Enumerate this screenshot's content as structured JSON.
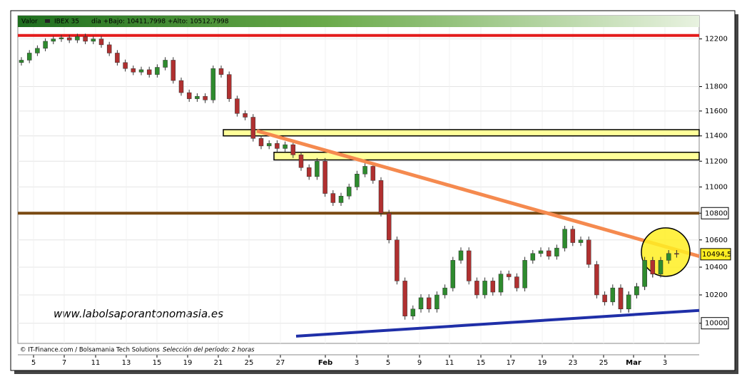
{
  "chart_data": {
    "type": "candlestick",
    "header": "Valor",
    "symbol": "IBEX 35",
    "header_info": "día +Bajo: 10411,7998 +Alto: 10512,7998",
    "footer": "© IT-Finance.com / Bolsamania Tech Solutions",
    "period": "Selección del período: 2 horas",
    "watermark": "www.labolsaporantonomasia.es",
    "categories": [
      "5",
      "7",
      "11",
      "13",
      "15",
      "19",
      "21",
      "25",
      "27",
      "Feb",
      "3",
      "5",
      "9",
      "11",
      "15",
      "17",
      "19",
      "23",
      "25",
      "Mar",
      "3"
    ],
    "open": [
      12000,
      12020,
      12080,
      12120,
      12180,
      12200,
      12210,
      12190,
      12220,
      12180,
      12200,
      12150,
      12080,
      12000,
      11950,
      11920,
      11940,
      11900,
      11960,
      12020,
      11850,
      11750,
      11700,
      11720,
      11690,
      11950,
      11900,
      11700,
      11580,
      11550,
      11380,
      11320,
      11340,
      11300,
      11330,
      11250,
      11150,
      11080,
      11200,
      10950,
      10880,
      10930,
      11000,
      11100,
      11160,
      11050,
      10800,
      10600,
      10300,
      10050,
      10100,
      10180,
      10100,
      10200,
      10250,
      10450,
      10520,
      10300,
      10200,
      10300,
      10220,
      10350,
      10330,
      10250,
      10450,
      10500,
      10520,
      10480,
      10540,
      10680,
      10580,
      10600,
      10420,
      10200,
      10150,
      10250,
      10100,
      10200,
      10260,
      10450,
      10350,
      10450,
      10500
    ],
    "high": [
      12045,
      12105,
      12145,
      12205,
      12225,
      12235,
      12235,
      12245,
      12245,
      12225,
      12225,
      12175,
      12105,
      12025,
      11975,
      11965,
      11965,
      11985,
      12045,
      12045,
      11875,
      11775,
      11745,
      11745,
      11975,
      11975,
      11925,
      11725,
      11605,
      11575,
      11405,
      11365,
      11365,
      11355,
      11355,
      11275,
      11175,
      11225,
      11225,
      10975,
      10955,
      11025,
      11125,
      11185,
      11185,
      11075,
      10825,
      10625,
      10325,
      10125,
      10205,
      10205,
      10225,
      10275,
      10475,
      10545,
      10545,
      10325,
      10325,
      10325,
      10375,
      10375,
      10355,
      10475,
      10525,
      10545,
      10545,
      10565,
      10705,
      10705,
      10625,
      10625,
      10445,
      10225,
      10275,
      10275,
      10225,
      10285,
      10475,
      10475,
      10475,
      10525,
      10525
    ],
    "low": [
      11975,
      11995,
      12055,
      12095,
      12155,
      12175,
      12165,
      12165,
      12155,
      12155,
      12125,
      12055,
      11975,
      11925,
      11895,
      11895,
      11875,
      11875,
      11935,
      11825,
      11725,
      11675,
      11675,
      11665,
      11665,
      11875,
      11675,
      11555,
      11525,
      11355,
      11295,
      11295,
      11275,
      11275,
      11225,
      11125,
      11055,
      11055,
      10925,
      10855,
      10855,
      10905,
      10975,
      11075,
      11025,
      10775,
      10575,
      10275,
      10025,
      10025,
      10075,
      10075,
      10075,
      10175,
      10225,
      10425,
      10275,
      10175,
      10175,
      10195,
      10195,
      10305,
      10225,
      10225,
      10425,
      10475,
      10455,
      10455,
      10515,
      10555,
      10555,
      10395,
      10175,
      10125,
      10125,
      10075,
      10075,
      10175,
      10235,
      10325,
      10325,
      10425,
      10470
    ],
    "close": [
      12020,
      12080,
      12120,
      12180,
      12200,
      12210,
      12190,
      12220,
      12180,
      12200,
      12150,
      12080,
      12000,
      11950,
      11920,
      11940,
      11900,
      11960,
      12020,
      11850,
      11750,
      11700,
      11720,
      11690,
      11950,
      11900,
      11700,
      11580,
      11550,
      11380,
      11320,
      11340,
      11300,
      11330,
      11250,
      11150,
      11080,
      11200,
      10950,
      10880,
      10930,
      11000,
      11100,
      11160,
      11050,
      10800,
      10600,
      10300,
      10050,
      10100,
      10180,
      10100,
      10200,
      10250,
      10450,
      10520,
      10300,
      10200,
      10300,
      10220,
      10350,
      10330,
      10250,
      10450,
      10500,
      10520,
      10480,
      10540,
      10680,
      10580,
      10600,
      10420,
      10200,
      10150,
      10250,
      10100,
      10200,
      10260,
      10450,
      10350,
      10450,
      10500,
      10495
    ],
    "up_color": "#2e8b2e",
    "down_color": "#b03030",
    "log_scale": true,
    "ylim": [
      9860,
      12400
    ],
    "yticks": [
      10000,
      10200,
      10400,
      10600,
      10800,
      11000,
      11200,
      11400,
      11600,
      11800,
      12200
    ],
    "grid": true,
    "last_price": {
      "value": 10494.5,
      "label": "10494,5"
    },
    "levels": [
      {
        "value": 12230,
        "color": "#e31b1b"
      },
      {
        "value": 10800,
        "color": "#7a4a12"
      }
    ],
    "zones": [
      {
        "from": 11400,
        "to": 11450,
        "color": "#ffff99"
      },
      {
        "from": 11210,
        "to": 11270,
        "color": "#ffff99"
      }
    ],
    "trendlines": [
      {
        "values": [
          11440,
          10480
        ],
        "color": "#f58a4f"
      },
      {
        "values": [
          9910,
          10090
        ],
        "color": "#1f2fa8"
      }
    ],
    "highlight": {
      "value": 10510,
      "color": "#ffee22"
    }
  }
}
